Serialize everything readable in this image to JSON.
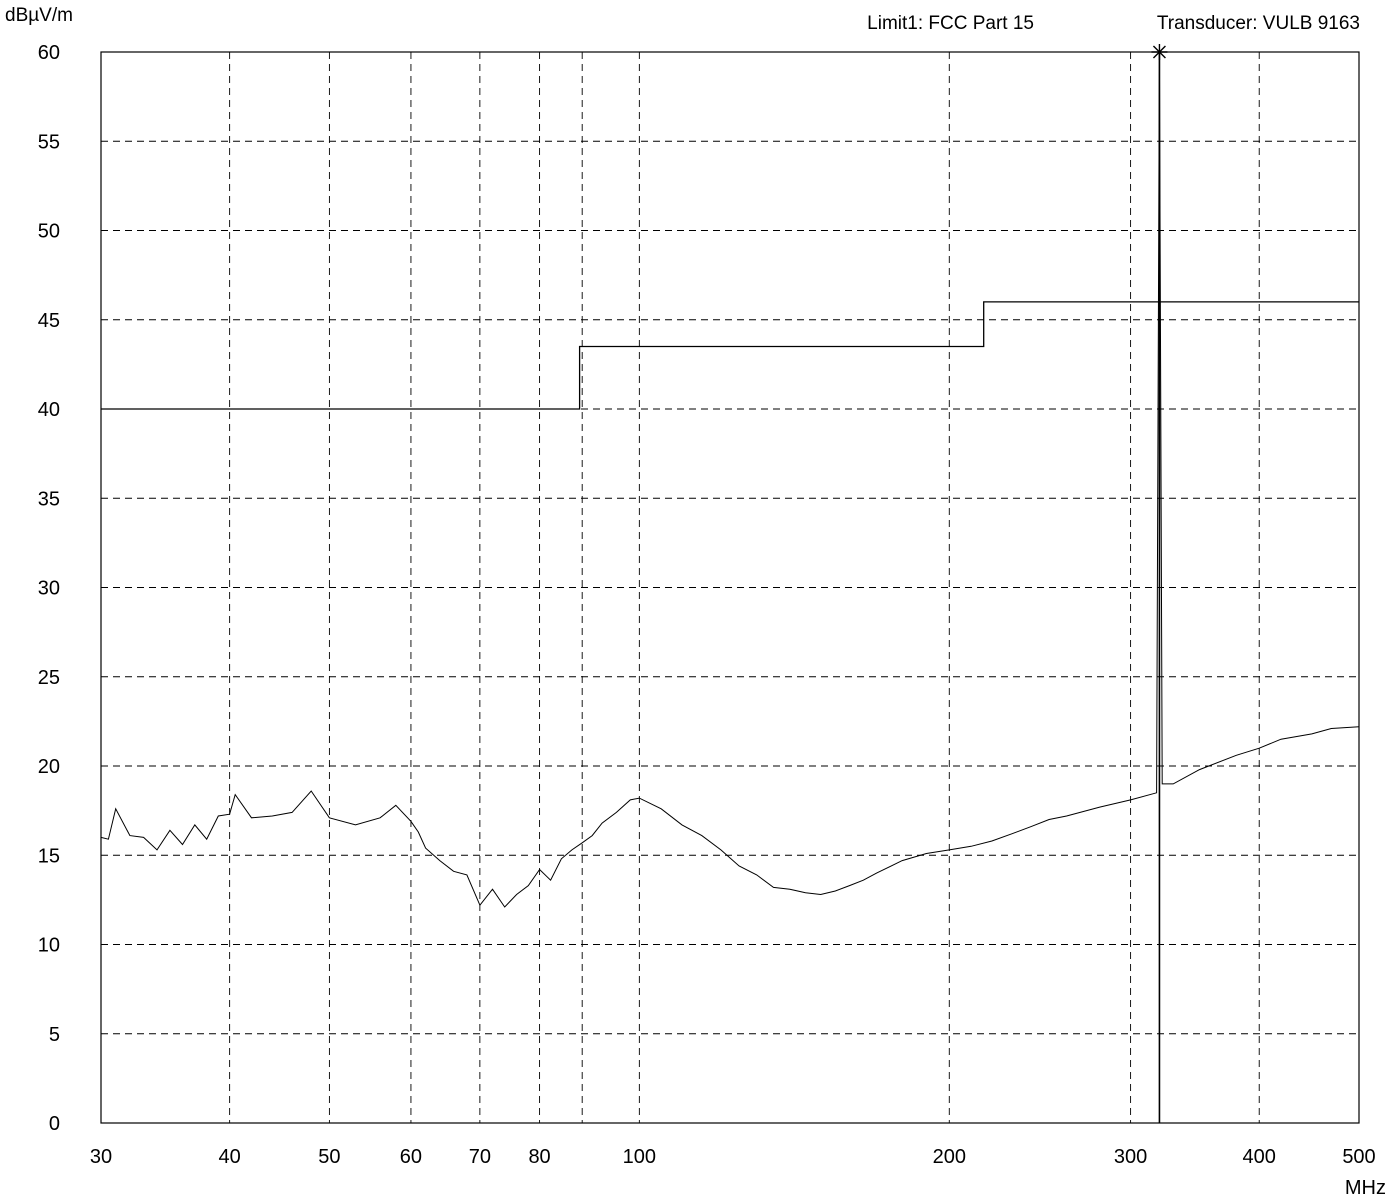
{
  "header": {
    "limit_label": "Limit1: FCC Part 15",
    "transducer_label": "Transducer: VULB 9163"
  },
  "chart_data": {
    "type": "line",
    "title": "",
    "xlabel": "MHz",
    "ylabel": "dBµV/m",
    "x_scale": "log",
    "xlim": [
      30,
      500
    ],
    "ylim": [
      0,
      60
    ],
    "grid": true,
    "x_ticks": [
      30,
      40,
      50,
      60,
      70,
      80,
      100,
      200,
      300,
      400,
      500
    ],
    "x_gridlines": [
      40,
      50,
      60,
      70,
      80,
      88,
      100,
      200,
      300,
      400
    ],
    "y_ticks": [
      0,
      5,
      10,
      15,
      20,
      25,
      30,
      35,
      40,
      45,
      50,
      55,
      60
    ],
    "series": [
      {
        "name": "Limit1: FCC Part 15",
        "points": [
          [
            30,
            40
          ],
          [
            87.5,
            40
          ],
          [
            87.5,
            43.5
          ],
          [
            216,
            43.5
          ],
          [
            216,
            46
          ],
          [
            500,
            46
          ]
        ]
      },
      {
        "points": [
          [
            30,
            16
          ],
          [
            30.5,
            15.9
          ],
          [
            31,
            17.6
          ],
          [
            32,
            16.1
          ],
          [
            33,
            16
          ],
          [
            34,
            15.3
          ],
          [
            35,
            16.4
          ],
          [
            36,
            15.6
          ],
          [
            37,
            16.7
          ],
          [
            38,
            15.9
          ],
          [
            39,
            17.2
          ],
          [
            40,
            17.3
          ],
          [
            40.5,
            18.4
          ],
          [
            42,
            17.1
          ],
          [
            44,
            17.2
          ],
          [
            46,
            17.4
          ],
          [
            48,
            18.6
          ],
          [
            50,
            17.1
          ],
          [
            53,
            16.7
          ],
          [
            56,
            17.1
          ],
          [
            58,
            17.8
          ],
          [
            60,
            16.9
          ],
          [
            61,
            16.3
          ],
          [
            62,
            15.4
          ],
          [
            64,
            14.7
          ],
          [
            66,
            14.1
          ],
          [
            68,
            13.9
          ],
          [
            70,
            12.2
          ],
          [
            72,
            13.1
          ],
          [
            74,
            12.1
          ],
          [
            76,
            12.8
          ],
          [
            78,
            13.3
          ],
          [
            80,
            14.2
          ],
          [
            82,
            13.6
          ],
          [
            84,
            14.8
          ],
          [
            86,
            15.3
          ],
          [
            88,
            15.7
          ],
          [
            90,
            16.1
          ],
          [
            92,
            16.8
          ],
          [
            95,
            17.4
          ],
          [
            98,
            18.1
          ],
          [
            100,
            18.2
          ],
          [
            105,
            17.6
          ],
          [
            110,
            16.7
          ],
          [
            115,
            16.1
          ],
          [
            120,
            15.3
          ],
          [
            125,
            14.4
          ],
          [
            130,
            13.9
          ],
          [
            135,
            13.2
          ],
          [
            140,
            13.1
          ],
          [
            145,
            12.9
          ],
          [
            150,
            12.8
          ],
          [
            155,
            13.0
          ],
          [
            160,
            13.3
          ],
          [
            165,
            13.6
          ],
          [
            170,
            14.0
          ],
          [
            180,
            14.7
          ],
          [
            190,
            15.1
          ],
          [
            200,
            15.3
          ],
          [
            210,
            15.5
          ],
          [
            220,
            15.8
          ],
          [
            230,
            16.2
          ],
          [
            240,
            16.6
          ],
          [
            250,
            17.0
          ],
          [
            260,
            17.2
          ],
          [
            280,
            17.7
          ],
          [
            300,
            18.1
          ],
          [
            318,
            18.5
          ],
          [
            320,
            60
          ],
          [
            322,
            19.0
          ],
          [
            330,
            19.0
          ],
          [
            350,
            19.8
          ],
          [
            380,
            20.6
          ],
          [
            400,
            21.0
          ],
          [
            420,
            21.5
          ],
          [
            450,
            21.8
          ],
          [
            470,
            22.1
          ],
          [
            500,
            22.2
          ]
        ]
      }
    ],
    "marker": {
      "x": 320,
      "y": 60,
      "symbol": "asterisk"
    }
  }
}
